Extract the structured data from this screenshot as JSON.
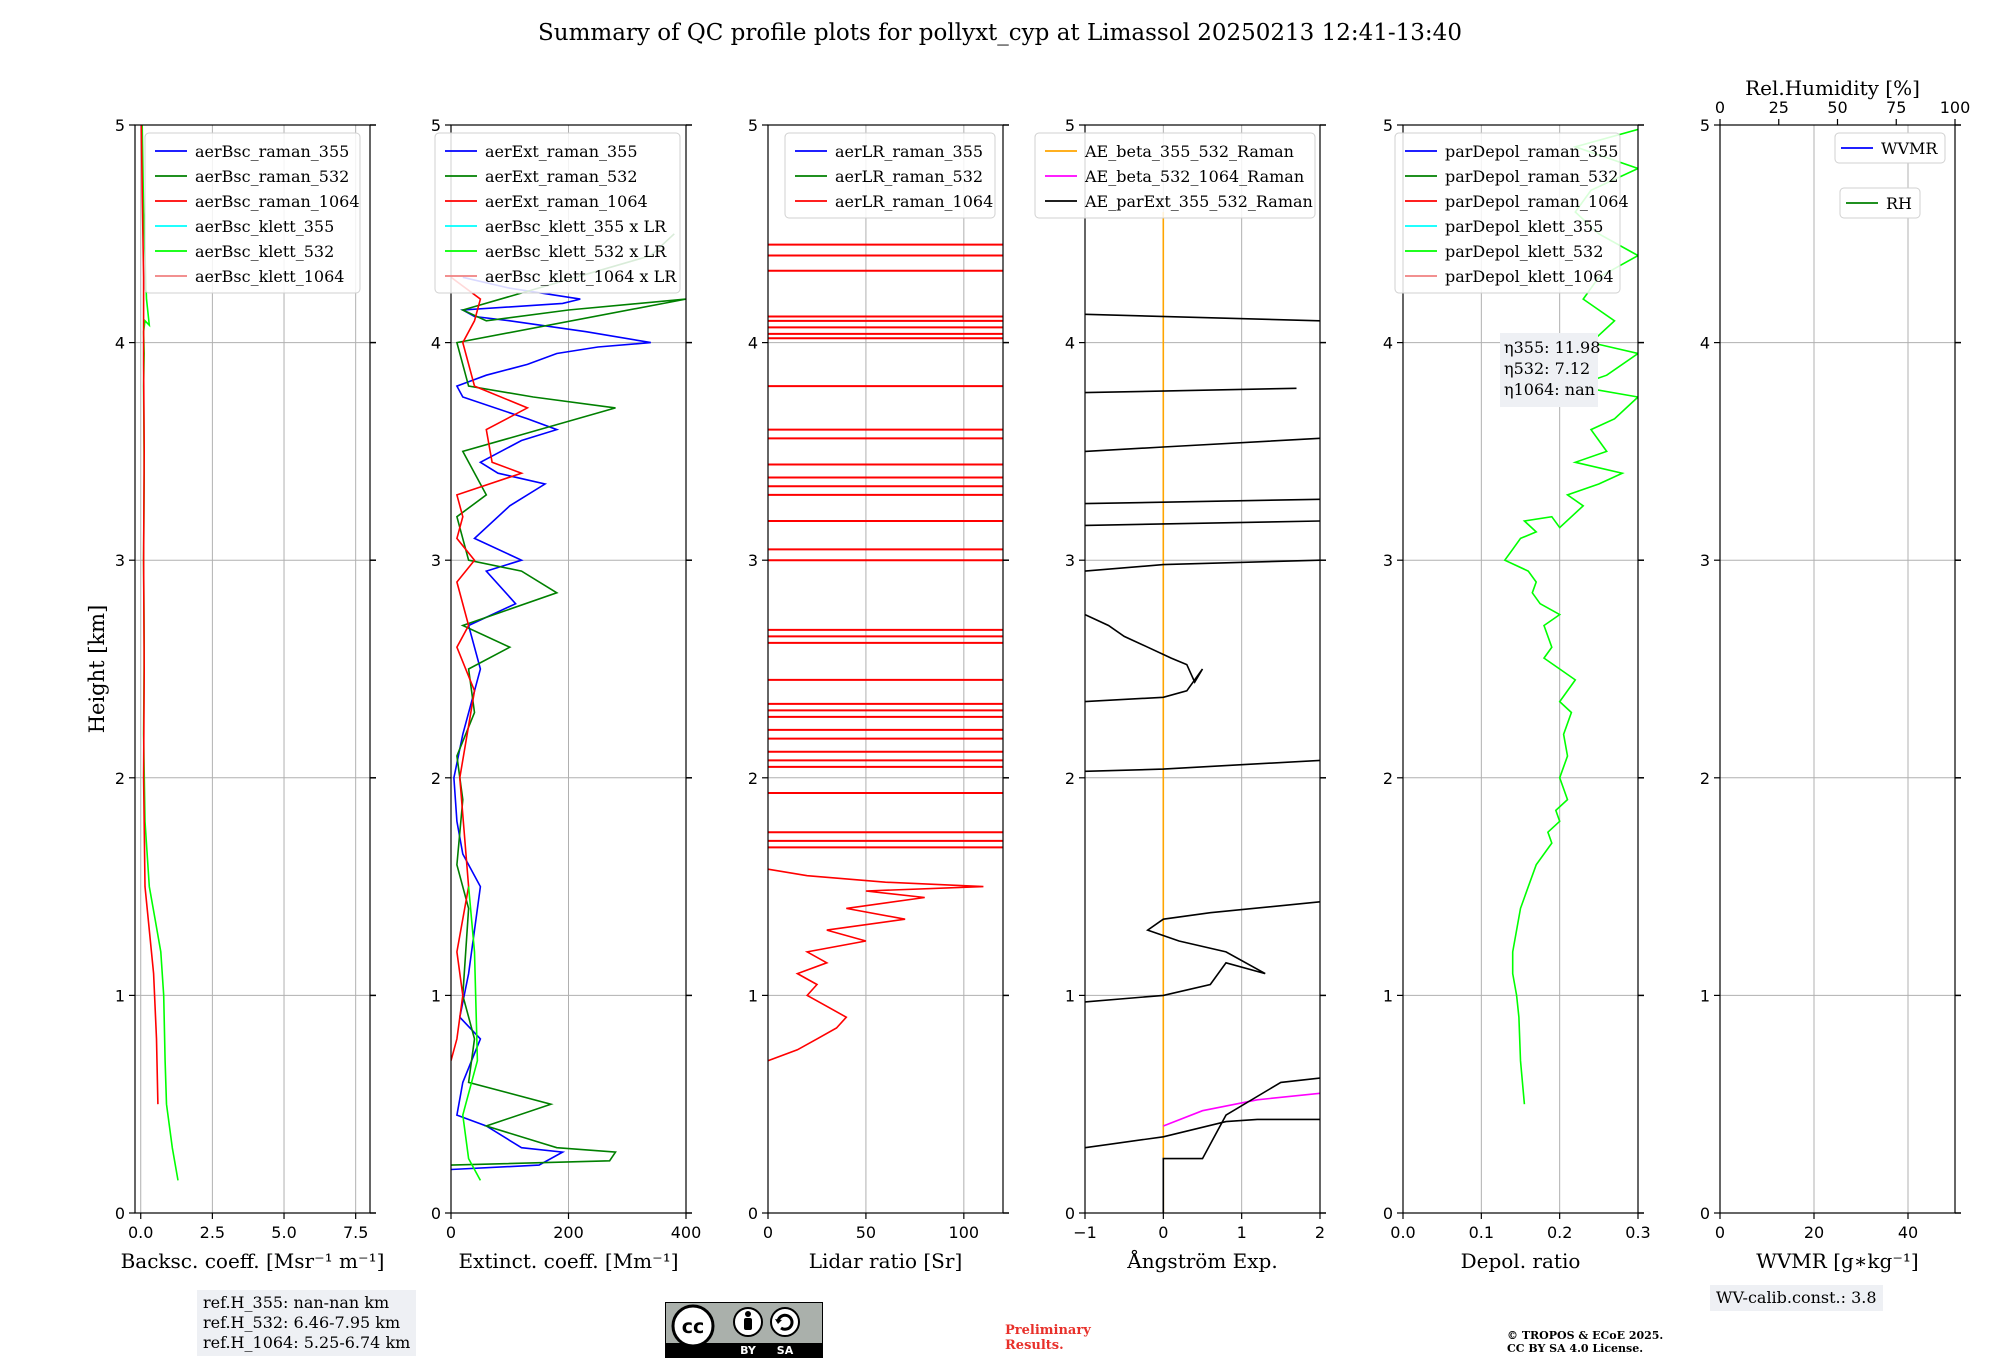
{
  "title": "Summary of QC profile plots for pollyxt_cyp at Limassol 20250213 12:41-13:40",
  "ylabel": "Height [km]",
  "ref_heights": [
    "ref.H_355: nan-nan km",
    "ref.H_532: 6.46-7.95 km",
    "ref.H_1064: 5.25-6.74 km"
  ],
  "wv_calib": "WV-calib.const.: 3.8",
  "preliminary": [
    "Preliminary",
    "Results."
  ],
  "copyright": [
    "© TROPOS & ECoE 2025.",
    "CC BY SA 4.0 License."
  ],
  "cc_badge": {
    "cc": "cc",
    "by": "BY",
    "sa": "SA"
  },
  "colors": {
    "blue": "#0000ff",
    "green": "#008000",
    "red": "#ff0000",
    "cyan": "#00ffff",
    "lime": "#00ff00",
    "pink": "#f08080",
    "orange": "#ffa500",
    "magenta": "#ff00ff",
    "black": "#000000",
    "grid": "#b0b0b0",
    "infobox": "#eef0f4",
    "prelim": "#e8302a"
  },
  "chart_data": [
    {
      "type": "line",
      "panel": "backscatter",
      "xlabel": "Backsc. coeff. [Msr⁻¹ m⁻¹]",
      "xlim": [
        -0.2,
        8.0
      ],
      "ylim": [
        0,
        5
      ],
      "xticks": [
        "0.0",
        "2.5",
        "5.0",
        "7.5"
      ],
      "xtick_values": [
        0,
        2.5,
        5.0,
        7.5
      ],
      "yticks": [
        "0",
        "1",
        "2",
        "3",
        "4",
        "5"
      ],
      "legend": [
        {
          "label": "aerBsc_raman_355",
          "color": "#0000ff"
        },
        {
          "label": "aerBsc_raman_532",
          "color": "#008000"
        },
        {
          "label": "aerBsc_raman_1064",
          "color": "#ff0000"
        },
        {
          "label": "aerBsc_klett_355",
          "color": "#00ffff"
        },
        {
          "label": "aerBsc_klett_532",
          "color": "#00ff00"
        },
        {
          "label": "aerBsc_klett_1064",
          "color": "#f08080"
        }
      ],
      "series": [
        {
          "name": "aerBsc_klett_532",
          "color": "#00ff00",
          "x": [
            1.3,
            1.1,
            0.9,
            0.85,
            0.8,
            0.7,
            0.5,
            0.3,
            0.15,
            0.1,
            0.12,
            0.1,
            0.12,
            0.1,
            0.12,
            0.1,
            0.15,
            0.3,
            0.2,
            0.1,
            0.05
          ],
          "y": [
            0.15,
            0.3,
            0.5,
            0.7,
            1.0,
            1.2,
            1.35,
            1.5,
            1.8,
            2.2,
            2.6,
            3.0,
            3.4,
            3.8,
            3.95,
            4.05,
            4.1,
            4.08,
            4.2,
            4.6,
            5.0
          ]
        },
        {
          "name": "aerBsc_raman_1064",
          "color": "#ff0000",
          "x": [
            0.6,
            0.55,
            0.45,
            0.3,
            0.15,
            0.1,
            0.12,
            0.1,
            0.12,
            0.1,
            0.1,
            0.05,
            0.02
          ],
          "y": [
            0.5,
            0.8,
            1.1,
            1.3,
            1.5,
            2.0,
            2.5,
            3.0,
            3.5,
            3.9,
            4.3,
            4.7,
            5.0
          ]
        }
      ]
    },
    {
      "type": "line",
      "panel": "extinction",
      "xlabel": "Extinct. coeff. [Mm⁻¹]",
      "xlim": [
        0,
        400
      ],
      "ylim": [
        0,
        5
      ],
      "xticks": [
        "0",
        "200",
        "400"
      ],
      "xtick_values": [
        0,
        200,
        400
      ],
      "yticks": [
        "0",
        "1",
        "2",
        "3",
        "4",
        "5"
      ],
      "legend": [
        {
          "label": "aerExt_raman_355",
          "color": "#0000ff"
        },
        {
          "label": "aerExt_raman_532",
          "color": "#008000"
        },
        {
          "label": "aerExt_raman_1064",
          "color": "#ff0000"
        },
        {
          "label": "aerBsc_klett_355 x LR",
          "color": "#00ffff"
        },
        {
          "label": "aerBsc_klett_532 x LR",
          "color": "#00ff00"
        },
        {
          "label": "aerBsc_klett_1064 x LR",
          "color": "#f08080"
        }
      ],
      "series": [
        {
          "name": "aerExt_raman_355",
          "color": "#0000ff",
          "x": [
            0,
            150,
            190,
            120,
            60,
            10,
            20,
            50,
            15,
            30,
            50,
            20,
            10,
            5,
            20,
            50,
            30,
            110,
            60,
            120,
            40,
            100,
            160,
            80,
            50,
            120,
            180,
            130,
            20,
            10,
            60,
            130,
            180,
            250,
            340,
            230,
            100,
            40,
            20,
            190,
            220,
            100,
            20
          ],
          "y": [
            0.2,
            0.22,
            0.28,
            0.3,
            0.4,
            0.45,
            0.6,
            0.8,
            0.9,
            1.1,
            1.5,
            1.65,
            1.8,
            2.0,
            2.2,
            2.5,
            2.7,
            2.8,
            2.95,
            3.0,
            3.1,
            3.25,
            3.35,
            3.4,
            3.45,
            3.55,
            3.6,
            3.65,
            3.75,
            3.8,
            3.85,
            3.9,
            3.95,
            3.98,
            4.0,
            4.05,
            4.1,
            4.12,
            4.15,
            4.18,
            4.2,
            4.25,
            4.3
          ]
        },
        {
          "name": "aerExt_raman_532",
          "color": "#008000",
          "x": [
            0,
            270,
            280,
            180,
            60,
            170,
            30,
            40,
            20,
            30,
            10,
            20,
            10,
            40,
            30,
            100,
            20,
            180,
            120,
            30,
            10,
            60,
            20,
            280,
            140,
            30,
            10,
            400,
            200,
            60,
            20,
            340,
            380
          ],
          "y": [
            0.22,
            0.24,
            0.28,
            0.3,
            0.4,
            0.5,
            0.6,
            0.8,
            1.0,
            1.4,
            1.6,
            1.9,
            2.1,
            2.3,
            2.5,
            2.6,
            2.7,
            2.85,
            2.95,
            3.0,
            3.2,
            3.3,
            3.5,
            3.7,
            3.75,
            3.8,
            4.0,
            4.2,
            4.15,
            4.1,
            4.15,
            4.4,
            4.5
          ]
        },
        {
          "name": "aerExt_raman_1064",
          "color": "#ff0000",
          "x": [
            0,
            10,
            20,
            10,
            30,
            15,
            40,
            10,
            30,
            10,
            40,
            10,
            20,
            10,
            120,
            70,
            60,
            130,
            40,
            20,
            40,
            50,
            0
          ],
          "y": [
            0.7,
            0.8,
            1.0,
            1.2,
            1.5,
            2.0,
            2.4,
            2.6,
            2.7,
            2.9,
            3.0,
            3.1,
            3.2,
            3.3,
            3.4,
            3.45,
            3.6,
            3.7,
            3.8,
            4.0,
            4.1,
            4.2,
            4.3
          ]
        },
        {
          "name": "aerBsc_klett_532 x LR",
          "color": "#00ff00",
          "x": [
            50,
            30,
            20,
            45,
            40,
            30
          ],
          "y": [
            0.15,
            0.25,
            0.45,
            0.7,
            1.2,
            1.5
          ]
        }
      ]
    },
    {
      "type": "line",
      "panel": "lidar_ratio",
      "xlabel": "Lidar ratio [Sr]",
      "xlim": [
        0,
        120
      ],
      "ylim": [
        0,
        5
      ],
      "xticks": [
        "0",
        "50",
        "100"
      ],
      "xtick_values": [
        0,
        50,
        100
      ],
      "yticks": [
        "0",
        "1",
        "2",
        "3",
        "4",
        "5"
      ],
      "legend": [
        {
          "label": "aerLR_raman_355",
          "color": "#0000ff"
        },
        {
          "label": "aerLR_raman_532",
          "color": "#008000"
        },
        {
          "label": "aerLR_raman_1064",
          "color": "#ff0000"
        }
      ],
      "series": [
        {
          "name": "aerLR_raman_1064",
          "color": "#ff0000",
          "x": [
            0,
            15,
            25,
            35,
            40,
            30,
            20,
            25,
            15,
            30,
            20,
            50,
            30,
            70,
            40,
            80,
            50,
            110,
            60,
            20,
            0
          ],
          "y": [
            0.7,
            0.75,
            0.8,
            0.85,
            0.9,
            0.95,
            1.0,
            1.05,
            1.1,
            1.15,
            1.2,
            1.25,
            1.3,
            1.35,
            1.4,
            1.45,
            1.48,
            1.5,
            1.52,
            1.55,
            1.58
          ]
        }
      ],
      "hlines": [
        1.68,
        1.71,
        1.75,
        1.93,
        2.05,
        2.08,
        2.12,
        2.18,
        2.22,
        2.28,
        2.31,
        2.34,
        2.45,
        2.62,
        2.65,
        2.68,
        3.0,
        3.05,
        3.18,
        3.3,
        3.34,
        3.38,
        3.44,
        3.56,
        3.6,
        3.8,
        4.02,
        4.04,
        4.07,
        4.1,
        4.12,
        4.33,
        4.4,
        4.45
      ]
    },
    {
      "type": "line",
      "panel": "angstrom",
      "xlabel": "Ångström Exp.",
      "xlim": [
        -1,
        2
      ],
      "ylim": [
        0,
        5
      ],
      "xticks": [
        "−1",
        "0",
        "1",
        "2"
      ],
      "xtick_values": [
        -1,
        0,
        1,
        2
      ],
      "yticks": [
        "0",
        "1",
        "2",
        "3",
        "4",
        "5"
      ],
      "legend": [
        {
          "label": "AE_beta_355_532_Raman",
          "color": "#ffa500"
        },
        {
          "label": "AE_beta_532_1064_Raman",
          "color": "#ff00ff"
        },
        {
          "label": "AE_parExt_355_532_Raman",
          "color": "#000000"
        }
      ],
      "series": [
        {
          "name": "AE_beta_355_532_Raman",
          "color": "#ffa500",
          "x": [
            0,
            0
          ],
          "y": [
            0,
            4.6
          ]
        },
        {
          "name": "AE_beta_532_1064_Raman",
          "color": "#ff00ff",
          "x": [
            0,
            0.5,
            1.2,
            2.0
          ],
          "y": [
            0.4,
            0.47,
            0.52,
            0.55
          ]
        },
        {
          "name": "AE_parExt_355_532_Raman",
          "color": "#000000",
          "x": [
            0,
            0,
            0.5,
            0.8,
            1.5,
            2.0
          ],
          "y": [
            0,
            0.25,
            0.25,
            0.45,
            0.6,
            0.62
          ]
        },
        {
          "name": "AE_parExt_355_532_Raman",
          "color": "#000000",
          "x": [
            -1,
            0,
            0.8,
            1.2,
            2.0
          ],
          "y": [
            0.3,
            0.35,
            0.42,
            0.43,
            0.43
          ]
        },
        {
          "name": "AE_parExt_355_532_Raman",
          "color": "#000000",
          "x": [
            -1,
            0,
            0.6,
            0.8,
            1.3,
            0.8,
            0.2,
            -0.2,
            0,
            0.6,
            2.0
          ],
          "y": [
            0.97,
            1.0,
            1.05,
            1.15,
            1.1,
            1.2,
            1.25,
            1.3,
            1.35,
            1.38,
            1.43
          ]
        },
        {
          "name": "AE_parExt_355_532_Raman",
          "color": "#000000",
          "x": [
            -1,
            0,
            1.0,
            2.0
          ],
          "y": [
            2.03,
            2.04,
            2.06,
            2.08
          ]
        },
        {
          "name": "AE_parExt_355_532_Raman",
          "color": "#000000",
          "x": [
            -1,
            0,
            0.3,
            0.5,
            0.4,
            0.3,
            0.1,
            -0.2,
            -0.5,
            -0.7,
            -1.0
          ],
          "y": [
            2.35,
            2.37,
            2.4,
            2.5,
            2.44,
            2.52,
            2.55,
            2.6,
            2.65,
            2.7,
            2.75
          ]
        },
        {
          "name": "AE_parExt_355_532_Raman",
          "color": "#000000",
          "x": [
            -1,
            0,
            2.0
          ],
          "y": [
            2.95,
            2.98,
            3.0
          ]
        },
        {
          "name": "AE_parExt_355_532_Raman",
          "color": "#000000",
          "x": [
            -1,
            2.0
          ],
          "y": [
            3.16,
            3.18
          ]
        },
        {
          "name": "AE_parExt_355_532_Raman",
          "color": "#000000",
          "x": [
            -1,
            2.0
          ],
          "y": [
            3.26,
            3.28
          ]
        },
        {
          "name": "AE_parExt_355_532_Raman",
          "color": "#000000",
          "x": [
            -1,
            0,
            2.0
          ],
          "y": [
            3.5,
            3.52,
            3.56
          ]
        },
        {
          "name": "AE_parExt_355_532_Raman",
          "color": "#000000",
          "x": [
            -1,
            1.7
          ],
          "y": [
            3.77,
            3.79
          ]
        },
        {
          "name": "AE_parExt_355_532_Raman",
          "color": "#000000",
          "x": [
            -1,
            2.0
          ],
          "y": [
            4.13,
            4.1
          ]
        }
      ]
    },
    {
      "type": "line",
      "panel": "depolarization",
      "xlabel": "Depol. ratio",
      "xlim": [
        0,
        0.3
      ],
      "ylim": [
        0,
        5
      ],
      "xticks": [
        "0.0",
        "0.1",
        "0.2",
        "0.3"
      ],
      "xtick_values": [
        0,
        0.1,
        0.2,
        0.3
      ],
      "yticks": [
        "0",
        "1",
        "2",
        "3",
        "4",
        "5"
      ],
      "legend": [
        {
          "label": "parDepol_raman_355",
          "color": "#0000ff"
        },
        {
          "label": "parDepol_raman_532",
          "color": "#008000"
        },
        {
          "label": "parDepol_raman_1064",
          "color": "#ff0000"
        },
        {
          "label": "parDepol_klett_355",
          "color": "#00ffff"
        },
        {
          "label": "parDepol_klett_532",
          "color": "#00ff00"
        },
        {
          "label": "parDepol_klett_1064",
          "color": "#f08080"
        }
      ],
      "annotations": [
        "η355: 11.98",
        "η532: 7.12",
        "η1064: nan"
      ],
      "series": [
        {
          "name": "parDepol_klett_532",
          "color": "#00ff00",
          "x": [
            0.155,
            0.15,
            0.148,
            0.145,
            0.14,
            0.14,
            0.145,
            0.15,
            0.16,
            0.17,
            0.19,
            0.185,
            0.2,
            0.195,
            0.21,
            0.2,
            0.21,
            0.205,
            0.215,
            0.2,
            0.22,
            0.2,
            0.18,
            0.19,
            0.18,
            0.2,
            0.175,
            0.165,
            0.17,
            0.16,
            0.13,
            0.14,
            0.15,
            0.17,
            0.155,
            0.19,
            0.2,
            0.23,
            0.21,
            0.25,
            0.28,
            0.22,
            0.26,
            0.24,
            0.27,
            0.3,
            0.22,
            0.26,
            0.3,
            0.24,
            0.27,
            0.23,
            0.25,
            0.3,
            0.25,
            0.22,
            0.24,
            0.3,
            0.22,
            0.3
          ],
          "y": [
            0.5,
            0.7,
            0.9,
            1.0,
            1.1,
            1.2,
            1.3,
            1.4,
            1.5,
            1.6,
            1.7,
            1.75,
            1.8,
            1.85,
            1.9,
            2.0,
            2.1,
            2.2,
            2.3,
            2.35,
            2.45,
            2.5,
            2.55,
            2.6,
            2.7,
            2.75,
            2.8,
            2.85,
            2.9,
            2.95,
            3.0,
            3.05,
            3.1,
            3.13,
            3.18,
            3.2,
            3.15,
            3.25,
            3.3,
            3.35,
            3.4,
            3.45,
            3.5,
            3.6,
            3.65,
            3.75,
            3.8,
            3.85,
            3.95,
            4.0,
            4.1,
            4.2,
            4.3,
            4.4,
            4.5,
            4.6,
            4.7,
            4.8,
            4.9,
            4.98
          ]
        }
      ]
    },
    {
      "type": "line",
      "panel": "water_vapor",
      "xlabel": "WVMR [g∗kg⁻¹]",
      "xlim": [
        0,
        50
      ],
      "ylim": [
        0,
        5
      ],
      "xticks": [
        "0",
        "20",
        "40"
      ],
      "xtick_values": [
        0,
        20,
        40
      ],
      "x2label": "Rel.Humidity [%]",
      "x2lim": [
        0,
        100
      ],
      "x2ticks": [
        "0",
        "25",
        "50",
        "75",
        "100"
      ],
      "x2tick_values": [
        0,
        25,
        50,
        75,
        100
      ],
      "yticks": [
        "0",
        "1",
        "2",
        "3",
        "4",
        "5"
      ],
      "legend": [
        {
          "label": "WVMR",
          "color": "#0000ff"
        },
        {
          "label": "RH",
          "color": "#008000"
        }
      ],
      "series": []
    }
  ]
}
